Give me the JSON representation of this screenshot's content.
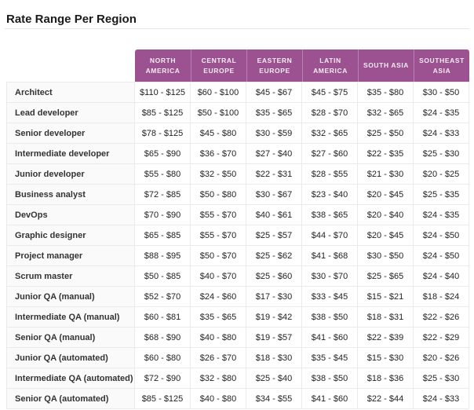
{
  "page": {
    "title": "Rate Range Per Region"
  },
  "colors": {
    "header_bg": "#9C5190",
    "header_text": "#F5ECF3",
    "row_border": "#EAEAEA",
    "role_column_bg": "#FAFAFA",
    "title_color": "#1A1A1A",
    "cell_text": "#232323"
  },
  "chart_data": {
    "type": "table",
    "title": "Rate Range Per Region",
    "columns": [
      "NORTH AMERICA",
      "CENTRAL EUROPE",
      "EASTERN EUROPE",
      "LATIN AMERICA",
      "SOUTH ASIA",
      "SOUTHEAST ASIA"
    ],
    "rows": [
      {
        "role": "Architect",
        "values": [
          "$110 - $125",
          "$60 - $100",
          "$45 - $67",
          "$45 - $75",
          "$35 - $80",
          "$30 - $50"
        ]
      },
      {
        "role": "Lead developer",
        "values": [
          "$85 - $125",
          "$50 - $100",
          "$35 - $65",
          "$28 - $70",
          "$32 - $65",
          "$24 - $35"
        ]
      },
      {
        "role": "Senior developer",
        "values": [
          "$78 - $125",
          "$45 - $80",
          "$30 - $59",
          "$32 - $65",
          "$25 - $50",
          "$24 - $33"
        ]
      },
      {
        "role": "Intermediate developer",
        "values": [
          "$65 - $90",
          "$36 - $70",
          "$27 - $40",
          "$27 - $60",
          "$22 - $35",
          "$25 - $30"
        ]
      },
      {
        "role": "Junior developer",
        "values": [
          "$55 - $80",
          "$32 - $50",
          "$22 - $31",
          "$28 - $55",
          "$21 - $30",
          "$20 - $25"
        ]
      },
      {
        "role": "Business analyst",
        "values": [
          "$72 - $85",
          "$50 - $80",
          "$30 - $67",
          "$23 - $40",
          "$20 - $45",
          "$25 - $35"
        ]
      },
      {
        "role": "DevOps",
        "values": [
          "$70 - $90",
          "$55 - $70",
          "$40 - $61",
          "$38 - $65",
          "$20 - $40",
          "$24 - $35"
        ]
      },
      {
        "role": "Graphic designer",
        "values": [
          "$65 - $85",
          "$55 - $70",
          "$25 - $57",
          "$44 - $70",
          "$20 - $45",
          "$24 - $50"
        ]
      },
      {
        "role": "Project manager",
        "values": [
          "$88 - $95",
          "$50 - $70",
          "$25 - $62",
          "$41 - $68",
          "$30 - $50",
          "$24 - $50"
        ]
      },
      {
        "role": "Scrum master",
        "values": [
          "$50 - $85",
          "$40 - $70",
          "$25 - $60",
          "$30 - $70",
          "$25 - $65",
          "$24 - $40"
        ]
      },
      {
        "role": "Junior QA (manual)",
        "values": [
          "$52 - $70",
          "$24 - $60",
          "$17 - $30",
          "$33 - $45",
          "$15 - $21",
          "$18 - $24"
        ]
      },
      {
        "role": "Intermediate QA (manual)",
        "values": [
          "$60 - $81",
          "$35 - $65",
          "$19 - $42",
          "$38 - $50",
          "$18 - $31",
          "$22 - $26"
        ]
      },
      {
        "role": "Senior QA (manual)",
        "values": [
          "$68 - $90",
          "$40 - $80",
          "$19 - $57",
          "$41 - $60",
          "$22 - $39",
          "$22 - $29"
        ]
      },
      {
        "role": "Junior QA (automated)",
        "values": [
          "$60 - $80",
          "$26 - $70",
          "$18 - $30",
          "$35 - $45",
          "$15 - $30",
          "$20 - $26"
        ]
      },
      {
        "role": "Intermediate QA (automated)",
        "values": [
          "$72 - $90",
          "$32 - $80",
          "$25 - $40",
          "$38 - $50",
          "$18 - $36",
          "$25 - $30"
        ]
      },
      {
        "role": "Senior QA (automated)",
        "values": [
          "$85 - $125",
          "$40 - $80",
          "$34 - $55",
          "$41 - $60",
          "$22 - $44",
          "$24 - $33"
        ]
      }
    ]
  }
}
